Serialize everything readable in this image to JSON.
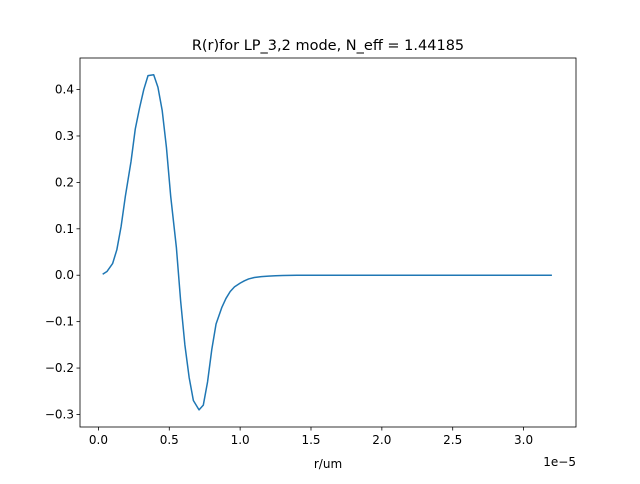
{
  "chart_data": {
    "type": "line",
    "title": "R(r)for LP_3,2 mode, N_eff = 1.44185",
    "xlabel": "r/um",
    "ylabel": "",
    "x_offset_label": "1e−5",
    "xlim": [
      -0.13,
      3.37
    ],
    "ylim": [
      -0.327,
      0.468
    ],
    "x_ticks": [
      {
        "value": 0.0,
        "label": "0.0"
      },
      {
        "value": 0.5,
        "label": "0.5"
      },
      {
        "value": 1.0,
        "label": "1.0"
      },
      {
        "value": 1.5,
        "label": "1.5"
      },
      {
        "value": 2.0,
        "label": "2.0"
      },
      {
        "value": 2.5,
        "label": "2.5"
      },
      {
        "value": 3.0,
        "label": "3.0"
      }
    ],
    "y_ticks": [
      {
        "value": -0.3,
        "label": "−0.3"
      },
      {
        "value": -0.2,
        "label": "−0.2"
      },
      {
        "value": -0.1,
        "label": "−0.1"
      },
      {
        "value": 0.0,
        "label": "0.0"
      },
      {
        "value": 0.1,
        "label": "0.1"
      },
      {
        "value": 0.2,
        "label": "0.2"
      },
      {
        "value": 0.3,
        "label": "0.3"
      },
      {
        "value": 0.4,
        "label": "0.4"
      }
    ],
    "grid": false,
    "series": [
      {
        "color": "#1f77b4",
        "x": [
          0.03,
          0.06,
          0.1,
          0.13,
          0.16,
          0.19,
          0.23,
          0.26,
          0.29,
          0.32,
          0.35,
          0.39,
          0.42,
          0.45,
          0.48,
          0.51,
          0.55,
          0.58,
          0.61,
          0.64,
          0.67,
          0.71,
          0.74,
          0.77,
          0.8,
          0.83,
          0.87,
          0.9,
          0.93,
          0.96,
          1.0,
          1.03,
          1.06,
          1.1,
          1.15,
          1.2,
          1.25,
          1.3,
          1.4,
          1.5,
          1.6,
          1.8,
          2.0,
          2.5,
          3.0,
          3.2
        ],
        "y": [
          0.002,
          0.008,
          0.025,
          0.055,
          0.105,
          0.17,
          0.245,
          0.315,
          0.36,
          0.4,
          0.43,
          0.432,
          0.405,
          0.355,
          0.275,
          0.17,
          0.06,
          -0.055,
          -0.15,
          -0.22,
          -0.27,
          -0.29,
          -0.28,
          -0.23,
          -0.16,
          -0.105,
          -0.07,
          -0.05,
          -0.035,
          -0.025,
          -0.017,
          -0.012,
          -0.008,
          -0.005,
          -0.003,
          -0.002,
          -0.001,
          -0.0005,
          0.0,
          0.0,
          0.0,
          0.0,
          0.0,
          0.0,
          0.0,
          0.0
        ]
      }
    ]
  }
}
